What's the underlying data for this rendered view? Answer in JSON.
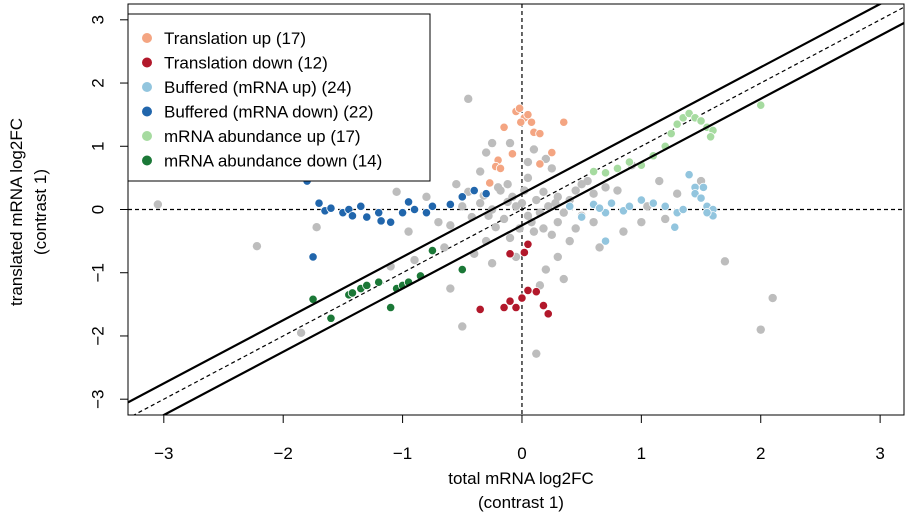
{
  "chart_data": {
    "type": "scatter",
    "xlabel": "total mRNA log2FC",
    "xlabel_sub": "(contrast 1)",
    "ylabel": "translated mRNA log2FC",
    "ylabel_sub": "(contrast 1)",
    "xlim": [
      -3.3,
      3.2
    ],
    "ylim": [
      -3.25,
      3.25
    ],
    "x_ticks": [
      -3,
      -2,
      -1,
      0,
      1,
      2,
      3
    ],
    "y_ticks": [
      -3,
      -2,
      -1,
      0,
      1,
      2,
      3
    ],
    "grid": false,
    "legend_position": "top-left",
    "reference_lines": {
      "vertical_dashed_x": 0,
      "horizontal_dashed_y": 0,
      "diagonal_dashed": {
        "slope": 1,
        "intercept": 0
      },
      "diagonal_solid": [
        {
          "slope": 1,
          "intercept": 0.25
        },
        {
          "slope": 1,
          "intercept": -0.25
        }
      ]
    },
    "series": [
      {
        "name": "Translation up (17)",
        "color": "#F4A582",
        "points": [
          [
            -0.05,
            1.55
          ],
          [
            -0.02,
            1.6
          ],
          [
            0.02,
            1.45
          ],
          [
            0.05,
            1.5
          ],
          [
            -0.01,
            1.38
          ],
          [
            0.08,
            1.38
          ],
          [
            0.1,
            1.22
          ],
          [
            0.15,
            1.2
          ],
          [
            -0.15,
            1.3
          ],
          [
            0.35,
            1.38
          ],
          [
            0.25,
            0.9
          ],
          [
            -0.2,
            0.78
          ],
          [
            -0.22,
            0.68
          ],
          [
            -0.18,
            0.65
          ],
          [
            0.15,
            0.72
          ],
          [
            -0.08,
            0.88
          ],
          [
            -0.27,
            0.42
          ]
        ]
      },
      {
        "name": "Translation down (12)",
        "color": "#B2182B",
        "points": [
          [
            -0.1,
            -0.7
          ],
          [
            0.02,
            -0.68
          ],
          [
            0.05,
            -0.55
          ],
          [
            -0.35,
            -1.58
          ],
          [
            -0.15,
            -1.55
          ],
          [
            -0.1,
            -1.45
          ],
          [
            0.0,
            -1.4
          ],
          [
            0.05,
            -1.28
          ],
          [
            0.12,
            -1.3
          ],
          [
            0.18,
            -1.52
          ],
          [
            0.22,
            -1.65
          ],
          [
            -0.05,
            -1.55
          ]
        ]
      },
      {
        "name": "Buffered (mRNA up) (24)",
        "color": "#92C5DE",
        "points": [
          [
            0.4,
            0.05
          ],
          [
            0.6,
            0.08
          ],
          [
            0.7,
            -0.05
          ],
          [
            0.75,
            0.1
          ],
          [
            0.85,
            -0.02
          ],
          [
            0.65,
            0.02
          ],
          [
            0.5,
            -0.12
          ],
          [
            0.9,
            0.05
          ],
          [
            1.0,
            0.15
          ],
          [
            1.1,
            0.1
          ],
          [
            1.2,
            0.05
          ],
          [
            1.3,
            -0.05
          ],
          [
            1.35,
            0.0
          ],
          [
            1.4,
            0.55
          ],
          [
            1.45,
            0.35
          ],
          [
            1.45,
            0.25
          ],
          [
            1.5,
            0.18
          ],
          [
            1.55,
            0.05
          ],
          [
            1.6,
            0.0
          ],
          [
            1.52,
            0.35
          ],
          [
            1.6,
            -0.1
          ],
          [
            1.55,
            -0.05
          ],
          [
            0.7,
            -0.5
          ],
          [
            1.28,
            -0.28
          ]
        ]
      },
      {
        "name": "Buffered (mRNA down) (22)",
        "color": "#2166AC",
        "points": [
          [
            -1.8,
            0.45
          ],
          [
            -1.7,
            0.1
          ],
          [
            -1.65,
            -0.02
          ],
          [
            -1.6,
            0.02
          ],
          [
            -1.5,
            -0.05
          ],
          [
            -1.45,
            0.0
          ],
          [
            -1.42,
            -0.1
          ],
          [
            -1.35,
            0.05
          ],
          [
            -1.3,
            -0.12
          ],
          [
            -1.2,
            -0.05
          ],
          [
            -1.18,
            -0.18
          ],
          [
            -1.1,
            -0.2
          ],
          [
            -1.0,
            -0.05
          ],
          [
            -0.95,
            0.12
          ],
          [
            -0.9,
            0.0
          ],
          [
            -0.8,
            -0.05
          ],
          [
            -0.75,
            0.05
          ],
          [
            -0.6,
            0.08
          ],
          [
            -0.5,
            0.2
          ],
          [
            -0.4,
            0.3
          ],
          [
            -0.3,
            0.25
          ],
          [
            -1.75,
            -0.75
          ]
        ]
      },
      {
        "name": "mRNA abundance up (17)",
        "color": "#A6DBA0",
        "points": [
          [
            0.6,
            0.6
          ],
          [
            0.7,
            0.58
          ],
          [
            0.8,
            0.65
          ],
          [
            0.9,
            0.75
          ],
          [
            1.0,
            0.7
          ],
          [
            1.1,
            0.85
          ],
          [
            1.2,
            1.0
          ],
          [
            1.25,
            1.2
          ],
          [
            1.3,
            1.35
          ],
          [
            1.35,
            1.45
          ],
          [
            1.4,
            1.52
          ],
          [
            1.45,
            1.45
          ],
          [
            1.5,
            1.4
          ],
          [
            1.55,
            1.3
          ],
          [
            1.6,
            1.25
          ],
          [
            2.0,
            1.65
          ],
          [
            1.58,
            1.15
          ]
        ]
      },
      {
        "name": "mRNA abundance down (14)",
        "color": "#1B7837",
        "points": [
          [
            -1.75,
            -1.42
          ],
          [
            -1.6,
            -1.72
          ],
          [
            -1.45,
            -1.35
          ],
          [
            -1.42,
            -1.32
          ],
          [
            -1.35,
            -1.25
          ],
          [
            -1.3,
            -1.2
          ],
          [
            -1.2,
            -1.15
          ],
          [
            -1.1,
            -1.55
          ],
          [
            -1.05,
            -1.25
          ],
          [
            -1.0,
            -1.2
          ],
          [
            -0.95,
            -1.15
          ],
          [
            -0.85,
            -1.05
          ],
          [
            -0.75,
            -0.65
          ],
          [
            -0.5,
            -0.95
          ]
        ]
      },
      {
        "name": "",
        "color": "#BDBDBD",
        "points": [
          [
            -3.05,
            0.08
          ],
          [
            -2.22,
            -0.58
          ],
          [
            -1.72,
            -0.28
          ],
          [
            -1.85,
            -1.95
          ],
          [
            -0.95,
            -0.35
          ],
          [
            -0.9,
            -0.8
          ],
          [
            -0.6,
            -1.25
          ],
          [
            -0.5,
            -1.85
          ],
          [
            -0.45,
            1.75
          ],
          [
            -0.3,
            0.9
          ],
          [
            -0.25,
            1.05
          ],
          [
            -0.1,
            1.05
          ],
          [
            0.1,
            0.95
          ],
          [
            0.2,
            0.8
          ],
          [
            0.4,
            -0.5
          ],
          [
            0.45,
            -0.3
          ],
          [
            0.6,
            -0.2
          ],
          [
            0.8,
            0.3
          ],
          [
            0.92,
            0.7
          ],
          [
            1.0,
            -0.2
          ],
          [
            1.05,
            0.05
          ],
          [
            1.4,
            0.55
          ],
          [
            1.5,
            0.45
          ],
          [
            1.7,
            -0.82
          ],
          [
            2.0,
            -1.9
          ],
          [
            2.1,
            -1.4
          ],
          [
            1.2,
            -0.15
          ],
          [
            0.5,
            0.4
          ],
          [
            -0.55,
            0.4
          ],
          [
            -0.7,
            -0.2
          ],
          [
            -0.65,
            -0.6
          ],
          [
            -0.4,
            -0.7
          ],
          [
            0.2,
            -0.95
          ],
          [
            0.15,
            -1.2
          ],
          [
            0.35,
            -1.1
          ],
          [
            0.12,
            -2.28
          ],
          [
            -0.12,
            0.4
          ],
          [
            0.05,
            0.5
          ],
          [
            0.25,
            -0.4
          ],
          [
            -0.3,
            -0.5
          ],
          [
            -0.2,
            0.35
          ],
          [
            0.3,
            0.2
          ],
          [
            -0.35,
            0.1
          ],
          [
            0.35,
            -0.05
          ],
          [
            0.1,
            -0.35
          ],
          [
            -0.1,
            -0.45
          ],
          [
            0.18,
            0.28
          ],
          [
            -0.22,
            -0.28
          ],
          [
            0.0,
            0.1
          ],
          [
            0.05,
            -0.1
          ],
          [
            -0.05,
            0.05
          ],
          [
            0.12,
            0.15
          ],
          [
            -0.15,
            -0.15
          ],
          [
            0.22,
            0.05
          ],
          [
            -0.25,
            0.0
          ],
          [
            0.08,
            -0.2
          ],
          [
            -0.08,
            0.2
          ],
          [
            0.28,
            0.1
          ],
          [
            -0.28,
            -0.1
          ],
          [
            0.15,
            -0.05
          ],
          [
            -0.12,
            0.12
          ],
          [
            0.02,
            0.3
          ],
          [
            -0.02,
            -0.3
          ],
          [
            0.3,
            -0.2
          ],
          [
            -0.32,
            0.22
          ],
          [
            0.4,
            0.15
          ],
          [
            -0.42,
            -0.12
          ],
          [
            0.45,
            0.3
          ],
          [
            -0.45,
            0.28
          ],
          [
            0.5,
            -0.1
          ],
          [
            -0.5,
            0.05
          ],
          [
            0.18,
            -0.3
          ],
          [
            -0.18,
            0.3
          ],
          [
            0.6,
            0.25
          ],
          [
            -0.6,
            -0.25
          ],
          [
            0.55,
            0.45
          ],
          [
            -0.8,
            0.2
          ],
          [
            -1.05,
            0.28
          ],
          [
            -1.1,
            -0.9
          ],
          [
            0.7,
            0.35
          ],
          [
            0.85,
            -0.35
          ],
          [
            0.25,
            0.65
          ],
          [
            -0.35,
            0.6
          ],
          [
            0.05,
            0.75
          ],
          [
            -0.05,
            -0.75
          ],
          [
            0.3,
            -0.75
          ],
          [
            -0.25,
            -0.85
          ],
          [
            0.65,
            -0.6
          ],
          [
            1.15,
            0.45
          ],
          [
            1.3,
            0.25
          ]
        ]
      }
    ]
  }
}
